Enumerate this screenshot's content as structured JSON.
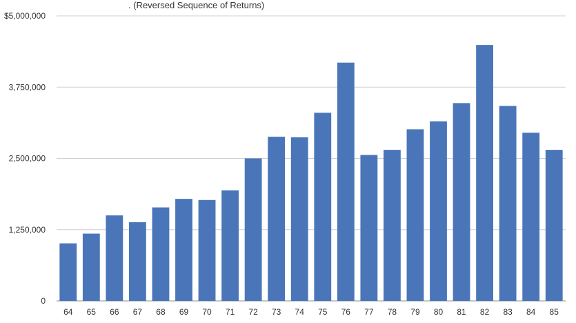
{
  "chart_data": {
    "type": "bar",
    "title": ". (Reversed Sequence of Returns)",
    "xlabel": "",
    "ylabel": "",
    "ylim": [
      0,
      5000000
    ],
    "yticks": [
      0,
      1250000,
      2500000,
      3750000,
      5000000
    ],
    "ytick_labels": [
      "0",
      "1,250,000",
      "2,500,000",
      "3,750,000",
      "$5,000,000"
    ],
    "grid": true,
    "legend": "none",
    "bar_color": "#4a76b9",
    "categories": [
      "64",
      "65",
      "66",
      "67",
      "68",
      "69",
      "70",
      "71",
      "72",
      "73",
      "74",
      "75",
      "76",
      "77",
      "78",
      "79",
      "80",
      "81",
      "82",
      "83",
      "84",
      "85"
    ],
    "values": [
      1010000,
      1180000,
      1500000,
      1380000,
      1640000,
      1790000,
      1770000,
      1940000,
      2500000,
      2880000,
      2870000,
      3300000,
      4180000,
      2560000,
      2650000,
      3010000,
      3150000,
      3470000,
      4490000,
      3420000,
      2950000,
      2650000
    ]
  }
}
